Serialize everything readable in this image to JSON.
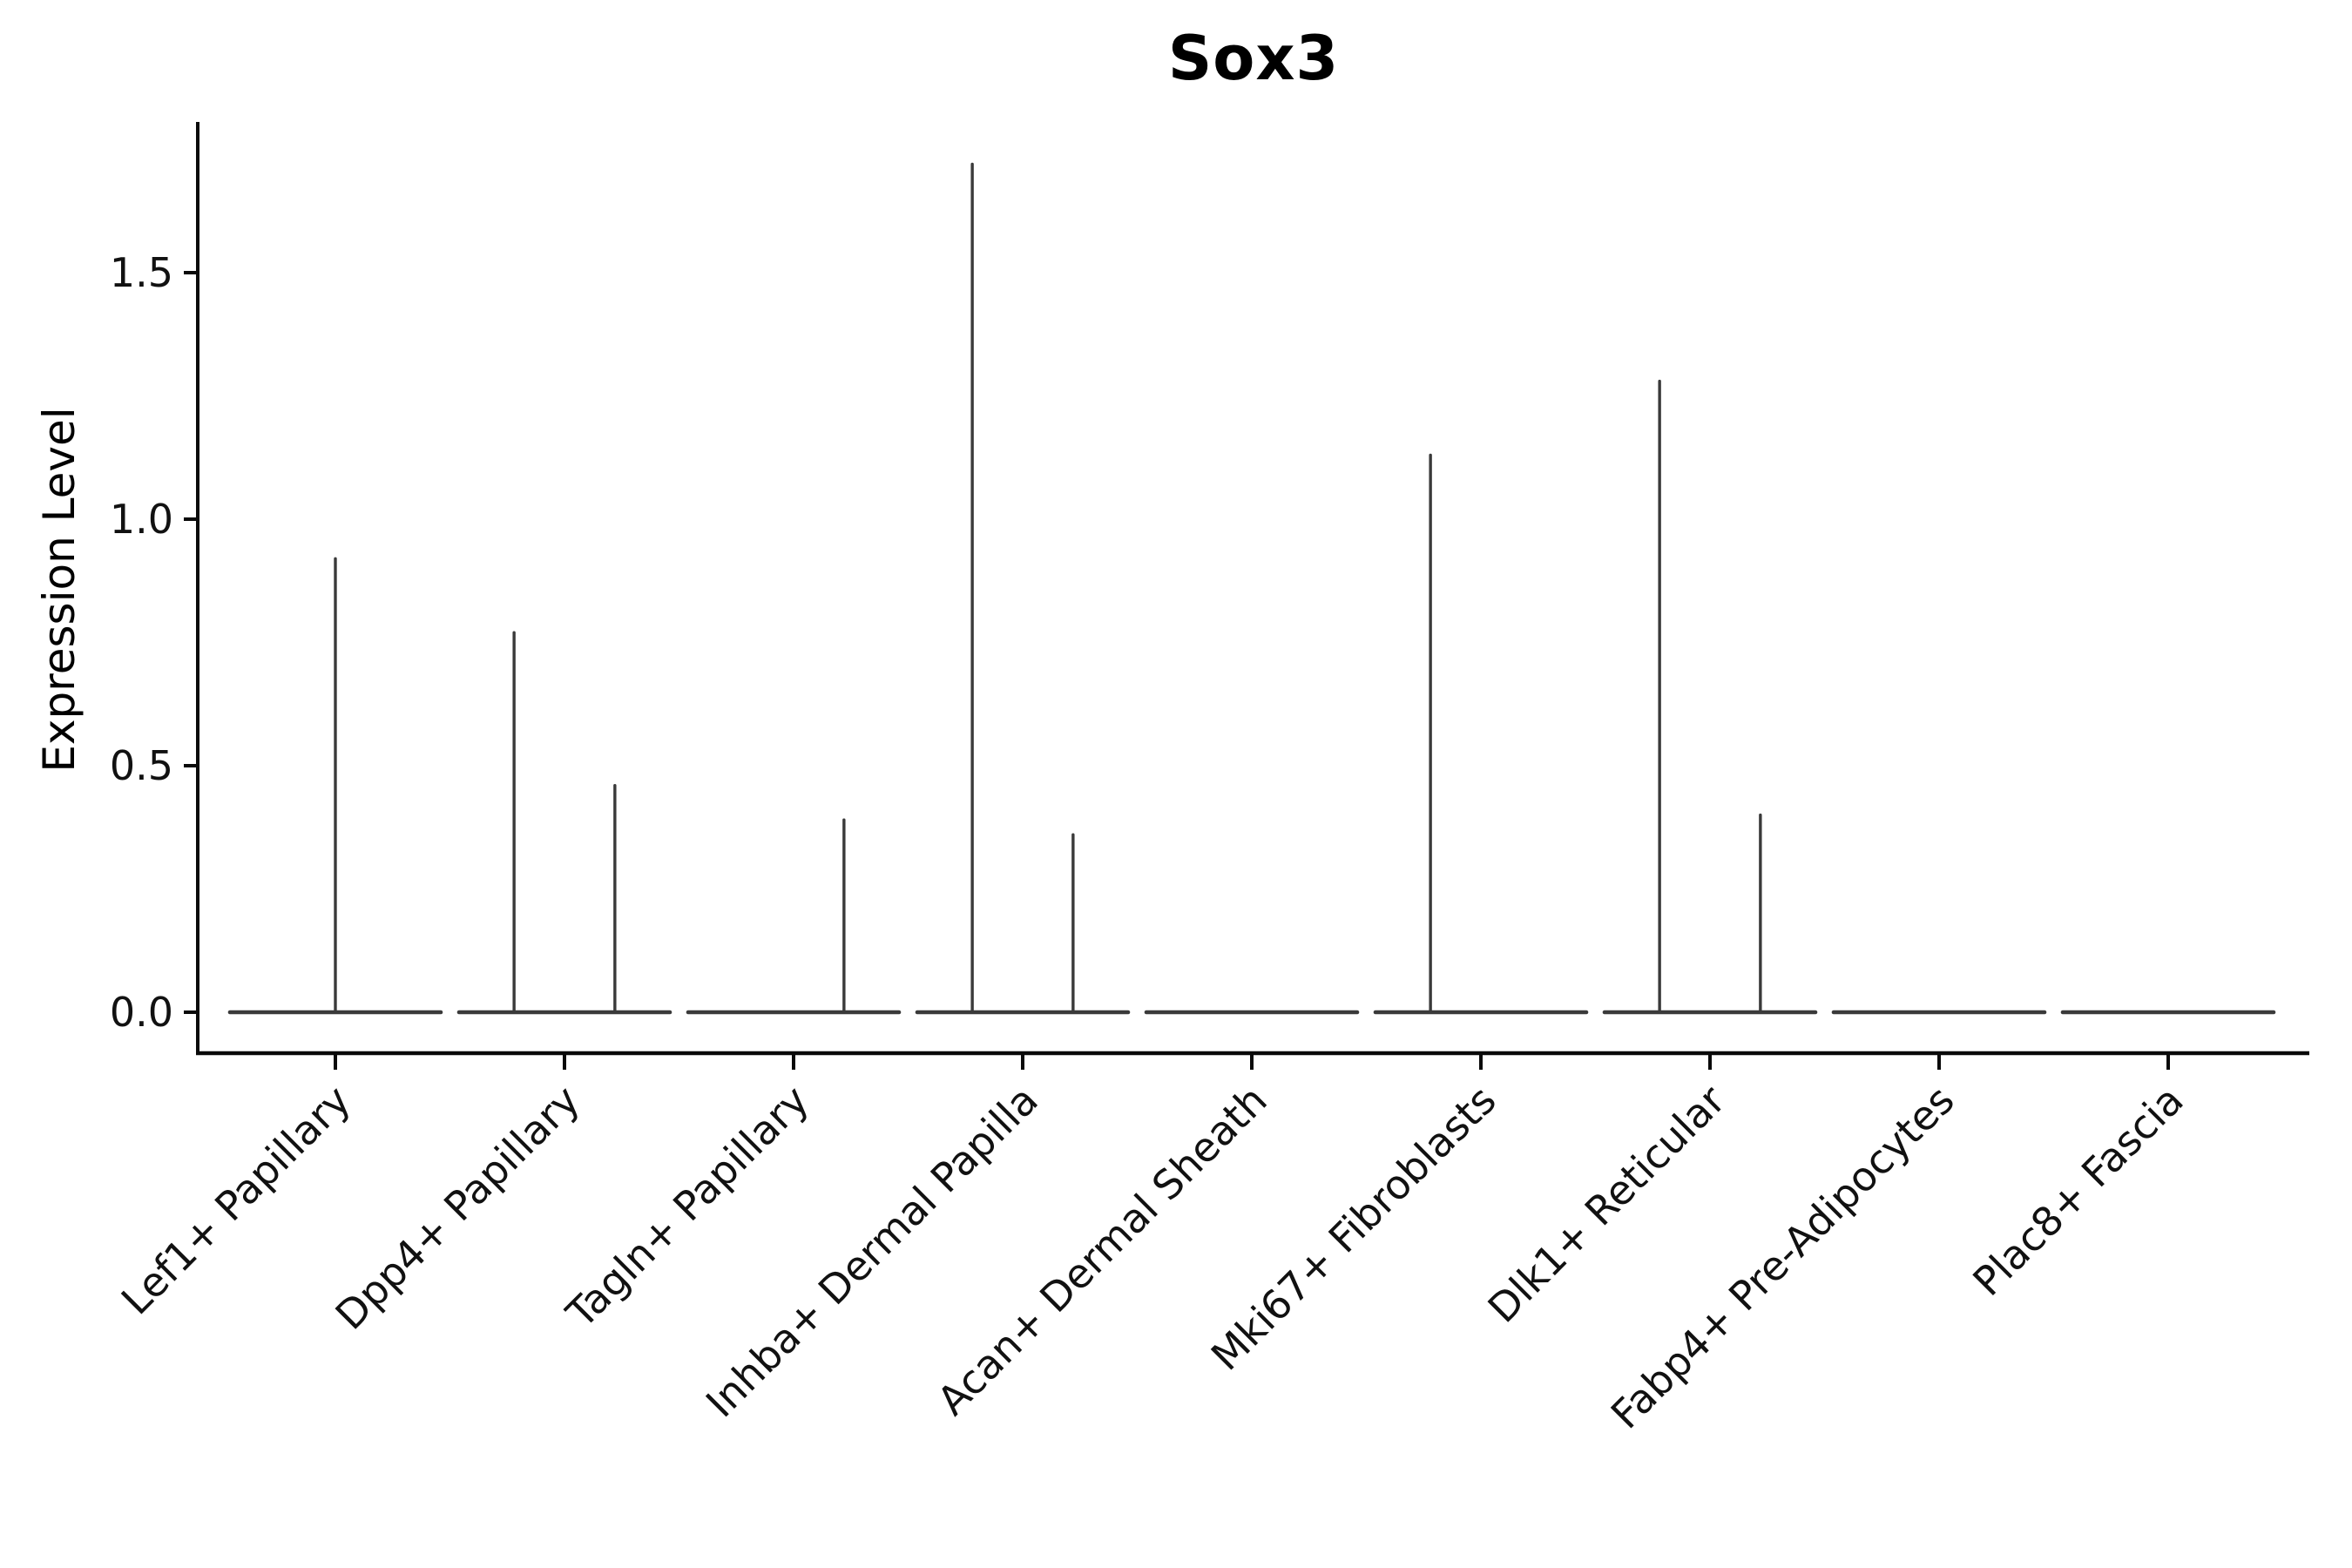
{
  "figure": {
    "background": "#ffffff"
  },
  "chart_data": {
    "type": "violin",
    "title": "Sox3",
    "xlabel": "",
    "ylabel": "Expression Level",
    "grid": false,
    "legend": "none",
    "ylim": [
      -0.08,
      1.81
    ],
    "ytick_values": [
      0.0,
      0.5,
      1.0,
      1.5
    ],
    "ytick_labels": [
      "0.0",
      "0.5",
      "1.0",
      "1.5"
    ],
    "xtick_label_rotation_deg": 45,
    "categories": [
      "Lef1+ Papillary",
      "Dpp4+ Papillary",
      "Tagln+ Papillary",
      "Inhba+ Dermal Papilla",
      "Acan+ Dermal Sheath",
      "Mki67+ Fibroblasts",
      "Dlk1+ Reticular",
      "Fabp4+ Pre-Adipocytes",
      "Plac8+ Fascia"
    ],
    "violins": [
      {
        "category": "Lef1+ Papillary",
        "baseline_value": 0,
        "peaks": [
          {
            "x_offset_frac": 0.0,
            "value": 0.92
          }
        ]
      },
      {
        "category": "Dpp4+ Papillary",
        "baseline_value": 0,
        "peaks": [
          {
            "x_offset_frac": -0.22,
            "value": 0.77
          },
          {
            "x_offset_frac": 0.22,
            "value": 0.46
          }
        ]
      },
      {
        "category": "Tagln+ Papillary",
        "baseline_value": 0,
        "peaks": [
          {
            "x_offset_frac": 0.22,
            "value": 0.39
          }
        ]
      },
      {
        "category": "Inhba+ Dermal Papilla",
        "baseline_value": 0,
        "peaks": [
          {
            "x_offset_frac": -0.22,
            "value": 1.72
          },
          {
            "x_offset_frac": 0.22,
            "value": 0.36
          }
        ]
      },
      {
        "category": "Acan+ Dermal Sheath",
        "baseline_value": 0,
        "peaks": []
      },
      {
        "category": "Mki67+ Fibroblasts",
        "baseline_value": 0,
        "peaks": [
          {
            "x_offset_frac": -0.22,
            "value": 1.13
          }
        ]
      },
      {
        "category": "Dlk1+ Reticular",
        "baseline_value": 0,
        "peaks": [
          {
            "x_offset_frac": -0.22,
            "value": 1.28
          },
          {
            "x_offset_frac": 0.22,
            "value": 0.4
          }
        ]
      },
      {
        "category": "Fabp4+ Pre-Adipocytes",
        "baseline_value": 0,
        "peaks": []
      },
      {
        "category": "Plac8+ Fascia",
        "baseline_value": 0,
        "peaks": []
      }
    ],
    "colors": {
      "violin_stroke": "#3a3a3a",
      "axis": "#0a0a0a",
      "text": "#111111"
    }
  }
}
